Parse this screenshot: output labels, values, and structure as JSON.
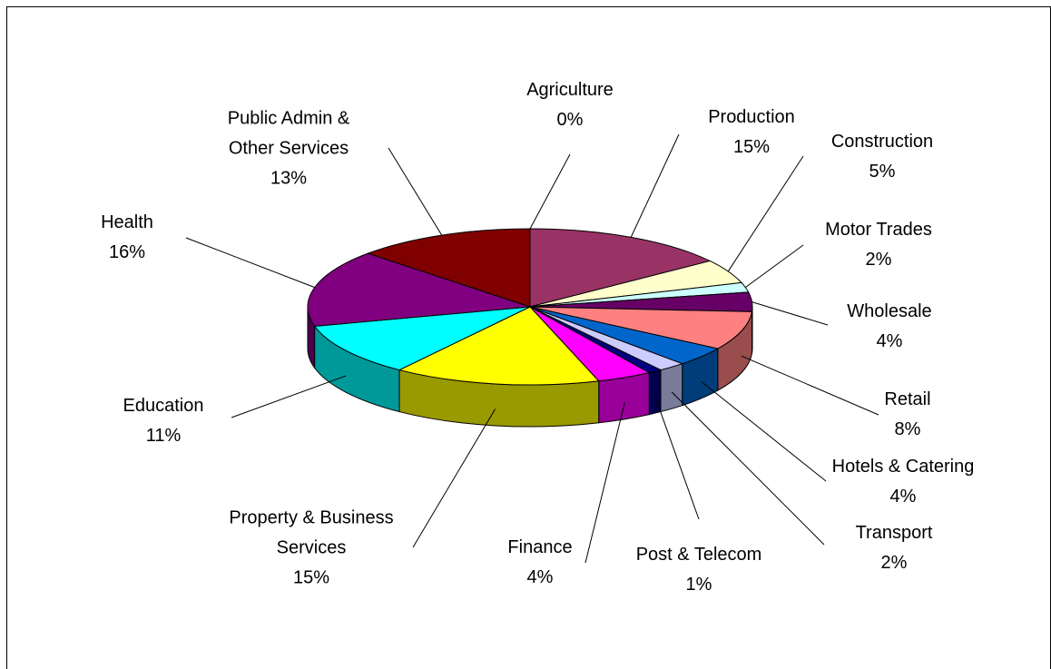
{
  "chart_data": {
    "type": "pie3d",
    "categories": [
      "Agriculture",
      "Production",
      "Construction",
      "Motor Trades",
      "Wholesale",
      "Retail",
      "Hotels & Catering",
      "Transport",
      "Post & Telecom",
      "Finance",
      "Property & Business Services",
      "Education",
      "Health",
      "Public Admin & Other Services"
    ],
    "values": [
      0,
      15,
      5,
      2,
      4,
      8,
      4,
      2,
      1,
      4,
      15,
      11,
      16,
      13
    ],
    "value_labels": [
      "0%",
      "15%",
      "5%",
      "2%",
      "4%",
      "8%",
      "4%",
      "2%",
      "1%",
      "4%",
      "15%",
      "11%",
      "16%",
      "13%"
    ],
    "colors": [
      "#9999FF",
      "#993366",
      "#FFFFCC",
      "#CCFFFF",
      "#660066",
      "#FF8080",
      "#0066CC",
      "#CCCCFF",
      "#000080",
      "#FF00FF",
      "#FFFF00",
      "#00FFFF",
      "#800080",
      "#800000"
    ],
    "legend": false
  }
}
